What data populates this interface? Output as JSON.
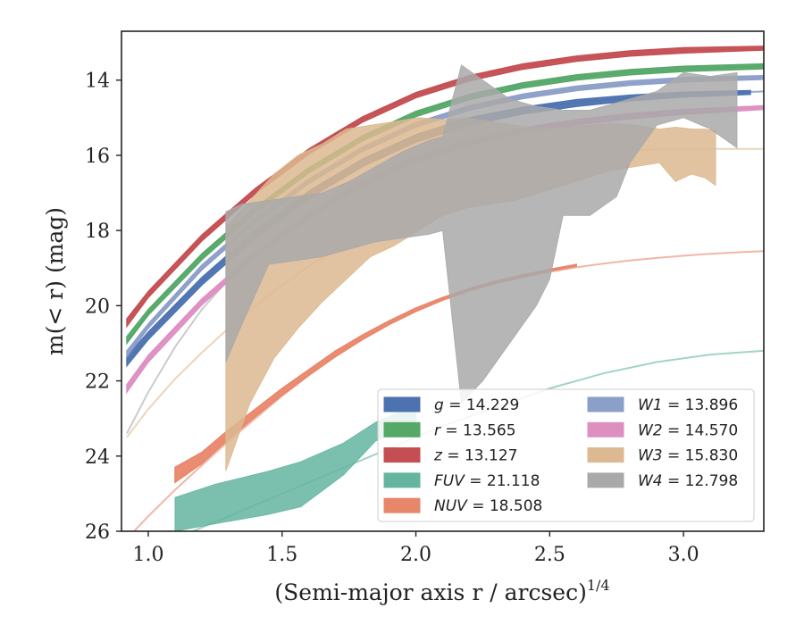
{
  "chart_data": {
    "type": "line",
    "xlabel": "(Semi-major axis r / arcsec)",
    "xlabel_superscript": "1/4",
    "ylabel": "m(< r) (mag)",
    "xlim": [
      0.9,
      3.3
    ],
    "ylim": [
      26.0,
      12.7
    ],
    "y_inverted": true,
    "grid": false,
    "legend_placement": "lower-right",
    "x_ticks": [
      "1.0",
      "1.5",
      "2.0",
      "2.5",
      "3.0"
    ],
    "y_ticks": [
      "14",
      "16",
      "18",
      "20",
      "22",
      "24",
      "26"
    ],
    "series": [
      {
        "name": "g",
        "label_value": "14.229",
        "legend_text": "g = 14.229",
        "color": "#4c72b0",
        "model": {
          "x": [
            0.92,
            1.0,
            1.1,
            1.2,
            1.3,
            1.4,
            1.5,
            1.6,
            1.7,
            1.8,
            1.9,
            2.0,
            2.1,
            2.2,
            2.3,
            2.4,
            2.5,
            2.6,
            2.7,
            2.8,
            2.9,
            3.0,
            3.1,
            3.2,
            3.3
          ],
          "y": [
            21.5,
            20.8,
            20.05,
            19.35,
            18.7,
            18.1,
            17.55,
            17.05,
            16.6,
            16.2,
            15.85,
            15.55,
            15.3,
            15.1,
            14.93,
            14.8,
            14.69,
            14.6,
            14.53,
            14.47,
            14.42,
            14.38,
            14.35,
            14.33,
            14.3
          ]
        },
        "profile": {
          "x": [
            0.92,
            1.0,
            1.2,
            1.4,
            1.6,
            1.8,
            2.0,
            2.2,
            2.4,
            2.6,
            2.8,
            3.0,
            3.25
          ],
          "y_low": [
            21.6,
            20.9,
            19.45,
            18.2,
            17.15,
            16.3,
            15.65,
            15.2,
            14.9,
            14.7,
            14.55,
            14.45,
            14.38
          ],
          "y_high": [
            21.35,
            20.7,
            19.25,
            18.0,
            16.95,
            16.1,
            15.45,
            15.0,
            14.72,
            14.52,
            14.4,
            14.32,
            14.28
          ]
        }
      },
      {
        "name": "r",
        "label_value": "13.565",
        "legend_text": "r = 13.565",
        "color": "#55a868",
        "model": {
          "x": [
            0.92,
            1.0,
            1.1,
            1.2,
            1.3,
            1.4,
            1.5,
            1.6,
            1.7,
            1.8,
            1.9,
            2.0,
            2.1,
            2.2,
            2.3,
            2.4,
            2.5,
            2.6,
            2.7,
            2.8,
            2.9,
            3.0,
            3.1,
            3.2,
            3.3
          ],
          "y": [
            20.95,
            20.2,
            19.4,
            18.7,
            18.05,
            17.45,
            16.9,
            16.4,
            15.95,
            15.55,
            15.2,
            14.9,
            14.65,
            14.45,
            14.28,
            14.14,
            14.02,
            13.93,
            13.85,
            13.79,
            13.74,
            13.7,
            13.67,
            13.65,
            13.63
          ]
        },
        "profile": {
          "x": [
            0.92,
            1.0,
            1.2,
            1.4,
            1.6,
            1.8,
            2.0,
            2.2,
            2.4,
            2.6,
            2.8,
            3.0,
            3.3
          ],
          "y_low": [
            21.0,
            20.25,
            18.78,
            17.52,
            16.47,
            15.62,
            14.97,
            14.52,
            14.21,
            14.0,
            13.86,
            13.77,
            13.7
          ],
          "y_high": [
            20.82,
            20.1,
            18.62,
            17.38,
            16.33,
            15.48,
            14.83,
            14.38,
            14.07,
            13.86,
            13.72,
            13.63,
            13.57
          ]
        }
      },
      {
        "name": "z",
        "label_value": "13.127",
        "legend_text": "z = 13.127",
        "color": "#c44e52",
        "model": {
          "x": [
            0.92,
            1.0,
            1.1,
            1.2,
            1.3,
            1.4,
            1.5,
            1.6,
            1.7,
            1.8,
            1.9,
            2.0,
            2.1,
            2.2,
            2.3,
            2.4,
            2.5,
            2.6,
            2.7,
            2.8,
            2.9,
            3.0,
            3.1,
            3.2,
            3.3
          ],
          "y": [
            20.45,
            19.7,
            18.9,
            18.2,
            17.55,
            16.95,
            16.4,
            15.9,
            15.45,
            15.05,
            14.7,
            14.4,
            14.15,
            13.95,
            13.78,
            13.64,
            13.52,
            13.43,
            13.36,
            13.3,
            13.26,
            13.22,
            13.2,
            13.18,
            13.16
          ]
        },
        "profile": {
          "x": [
            0.92,
            1.0,
            1.2,
            1.4,
            1.6,
            1.8,
            2.0,
            2.2,
            2.4,
            2.6,
            2.8,
            3.0,
            3.3
          ],
          "y_low": [
            20.55,
            19.78,
            18.28,
            17.02,
            15.97,
            15.12,
            14.47,
            14.02,
            13.71,
            13.5,
            13.36,
            13.28,
            13.2
          ],
          "y_high": [
            20.35,
            19.62,
            18.12,
            16.88,
            15.83,
            14.98,
            14.33,
            13.88,
            13.57,
            13.36,
            13.22,
            13.14,
            13.1
          ]
        }
      },
      {
        "name": "FUV",
        "label_value": "21.118",
        "legend_text": "FUV = 21.118",
        "color": "#64b5a0",
        "model": {
          "x": [
            1.1,
            1.3,
            1.5,
            1.7,
            1.9,
            2.1,
            2.3,
            2.5,
            2.7,
            2.9,
            3.1,
            3.3
          ],
          "y": [
            26.2,
            25.6,
            25.0,
            24.4,
            23.8,
            23.2,
            22.7,
            22.2,
            21.8,
            21.5,
            21.3,
            21.2
          ]
        },
        "profile": {
          "x": [
            1.1,
            1.25,
            1.45,
            1.57,
            1.73,
            1.85,
            1.95,
            2.0
          ],
          "y_low": [
            26.0,
            25.8,
            25.55,
            25.35,
            24.5,
            23.6,
            23.3,
            23.2
          ],
          "y_high": [
            25.1,
            24.75,
            24.4,
            24.15,
            23.65,
            23.1,
            22.8,
            22.7
          ]
        }
      },
      {
        "name": "NUV",
        "label_value": "18.508",
        "legend_text": "NUV = 18.508",
        "color": "#e8866a",
        "model": {
          "x": [
            0.92,
            1.0,
            1.1,
            1.2,
            1.3,
            1.4,
            1.5,
            1.6,
            1.7,
            1.8,
            1.9,
            2.0,
            2.1,
            2.2,
            2.3,
            2.4,
            2.5,
            2.6,
            2.7,
            2.8,
            2.9,
            3.0,
            3.1,
            3.2,
            3.3
          ],
          "y": [
            26.2,
            25.6,
            24.9,
            24.25,
            23.6,
            23.0,
            22.4,
            21.85,
            21.35,
            20.9,
            20.5,
            20.15,
            19.85,
            19.6,
            19.4,
            19.24,
            19.1,
            18.98,
            18.88,
            18.8,
            18.73,
            18.67,
            18.62,
            18.58,
            18.55
          ]
        },
        "profile": {
          "x": [
            1.1,
            1.2,
            1.3,
            1.4,
            1.5,
            1.6,
            1.7,
            1.8,
            1.9,
            2.0,
            2.1,
            2.2,
            2.3,
            2.4,
            2.5,
            2.6
          ],
          "y_low": [
            24.7,
            24.2,
            23.55,
            22.95,
            22.38,
            21.85,
            21.35,
            20.9,
            20.5,
            20.15,
            19.85,
            19.6,
            19.4,
            19.24,
            19.08,
            18.95
          ],
          "y_high": [
            24.3,
            23.9,
            23.3,
            22.75,
            22.2,
            21.7,
            21.2,
            20.78,
            20.4,
            20.06,
            19.78,
            19.54,
            19.34,
            19.18,
            19.03,
            18.9
          ]
        }
      },
      {
        "name": "W1",
        "label_value": "13.896",
        "legend_text": "W1 = 13.896",
        "color": "#8c9fc8",
        "model": {
          "x": [
            0.92,
            1.0,
            1.1,
            1.2,
            1.3,
            1.4,
            1.5,
            1.6,
            1.7,
            1.8,
            1.9,
            2.0,
            2.1,
            2.2,
            2.3,
            2.4,
            2.5,
            2.6,
            2.7,
            2.8,
            2.9,
            3.0,
            3.1,
            3.2,
            3.3
          ],
          "y": [
            21.3,
            20.55,
            19.75,
            19.0,
            18.35,
            17.75,
            17.2,
            16.7,
            16.25,
            15.85,
            15.5,
            15.2,
            14.95,
            14.75,
            14.58,
            14.44,
            14.32,
            14.23,
            14.15,
            14.09,
            14.04,
            14.0,
            13.97,
            13.95,
            13.93
          ]
        },
        "profile": {
          "x": [
            0.92,
            1.0,
            1.2,
            1.4,
            1.6,
            1.8,
            2.0,
            2.2,
            2.4,
            2.6,
            2.8,
            3.0,
            3.3
          ],
          "y_low": [
            21.35,
            20.6,
            19.05,
            17.8,
            16.75,
            15.9,
            15.25,
            14.8,
            14.49,
            14.28,
            14.14,
            14.05,
            13.98
          ],
          "y_high": [
            21.2,
            20.48,
            18.92,
            17.68,
            16.63,
            15.78,
            15.13,
            14.68,
            14.37,
            14.16,
            14.02,
            13.93,
            13.88
          ]
        }
      },
      {
        "name": "W2",
        "label_value": "14.570",
        "legend_text": "W2 = 14.570",
        "color": "#dd8fc2",
        "model": {
          "x": [
            0.92,
            1.0,
            1.1,
            1.2,
            1.3,
            1.4,
            1.5,
            1.6,
            1.7,
            1.8,
            1.9,
            2.0,
            2.1,
            2.2,
            2.3,
            2.4,
            2.5,
            2.6,
            2.7,
            2.8,
            2.9,
            3.0,
            3.1,
            3.2,
            3.3
          ],
          "y": [
            22.2,
            21.4,
            20.6,
            19.9,
            19.25,
            18.65,
            18.1,
            17.6,
            17.15,
            16.75,
            16.4,
            16.1,
            15.85,
            15.65,
            15.48,
            15.34,
            15.22,
            15.12,
            15.03,
            14.96,
            14.9,
            14.85,
            14.8,
            14.76,
            14.72
          ]
        },
        "profile": {
          "x": [
            0.92,
            1.0,
            1.2,
            1.4,
            1.6,
            1.8,
            2.0,
            2.2,
            2.4,
            2.6,
            2.8,
            3.0,
            3.3
          ],
          "y_low": [
            22.3,
            21.5,
            19.98,
            18.72,
            17.67,
            16.82,
            16.17,
            15.72,
            15.41,
            15.19,
            15.03,
            14.91,
            14.78
          ],
          "y_high": [
            22.1,
            21.32,
            19.82,
            18.58,
            17.53,
            16.68,
            16.03,
            15.58,
            15.27,
            15.05,
            14.89,
            14.78,
            14.68
          ]
        }
      },
      {
        "name": "W3",
        "label_value": "15.830",
        "legend_text": "W3 = 15.830",
        "color": "#dcb990",
        "model": {
          "x": [
            0.92,
            1.0,
            1.1,
            1.2,
            1.3,
            1.4,
            1.5,
            1.6,
            1.7,
            1.8,
            1.9,
            2.0,
            2.1,
            2.2,
            2.3,
            2.4,
            2.5,
            2.6,
            2.7,
            2.8,
            2.9,
            3.0,
            3.1,
            3.2,
            3.3
          ],
          "y": [
            23.5,
            22.75,
            21.95,
            21.25,
            20.6,
            20.0,
            19.45,
            18.95,
            18.5,
            18.1,
            17.75,
            17.45,
            17.2,
            16.95,
            16.72,
            16.5,
            16.3,
            16.12,
            15.97,
            15.88,
            15.84,
            15.83,
            15.83,
            15.83,
            15.83
          ]
        },
        "profile": {
          "x": [
            1.29,
            1.38,
            1.47,
            1.56,
            1.65,
            1.74,
            1.83,
            1.92,
            2.01,
            2.1,
            2.19,
            2.28,
            2.37,
            2.46,
            2.55,
            2.64,
            2.73,
            2.82,
            2.91,
            2.97,
            3.03,
            3.08,
            3.12
          ],
          "y_high": [
            17.9,
            17.2,
            16.5,
            16.0,
            15.7,
            15.3,
            15.2,
            15.1,
            15.0,
            15.05,
            15.0,
            15.1,
            15.2,
            15.3,
            15.25,
            15.2,
            15.15,
            15.2,
            15.3,
            15.25,
            15.3,
            15.3,
            15.35
          ],
          "y_low": [
            24.4,
            22.6,
            21.4,
            20.6,
            19.9,
            19.3,
            18.7,
            18.4,
            18.0,
            17.6,
            17.4,
            17.3,
            17.2,
            17.0,
            16.8,
            16.6,
            16.4,
            16.3,
            16.2,
            16.7,
            16.5,
            16.6,
            16.8
          ]
        }
      },
      {
        "name": "W4",
        "label_value": "12.798",
        "legend_text": "W4 = 12.798",
        "color": "#a9a9a9",
        "model": {
          "x": [
            0.92,
            1.0,
            1.1,
            1.2,
            1.3
          ],
          "y": [
            23.4,
            22.3,
            21.1,
            20.1,
            19.3
          ]
        },
        "profile": {
          "x": [
            1.29,
            1.35,
            1.45,
            1.55,
            1.65,
            1.75,
            1.85,
            1.95,
            2.05,
            2.1,
            2.17,
            2.25,
            2.35,
            2.45,
            2.5,
            2.55,
            2.65,
            2.75,
            2.8,
            2.9,
            3.0,
            3.1,
            3.2
          ],
          "y_high": [
            17.5,
            17.3,
            17.2,
            17.1,
            17.0,
            16.7,
            16.3,
            15.9,
            15.6,
            15.5,
            13.6,
            14.0,
            14.5,
            14.7,
            14.75,
            14.8,
            14.8,
            14.6,
            14.5,
            14.3,
            13.8,
            13.9,
            13.8
          ],
          "y_low": [
            21.5,
            20.5,
            18.9,
            18.8,
            18.7,
            18.5,
            18.3,
            18.2,
            18.1,
            18.0,
            22.6,
            22.0,
            21.0,
            20.0,
            19.3,
            17.6,
            17.6,
            17.1,
            16.2,
            15.2,
            15.0,
            15.3,
            15.8
          ]
        }
      }
    ]
  }
}
